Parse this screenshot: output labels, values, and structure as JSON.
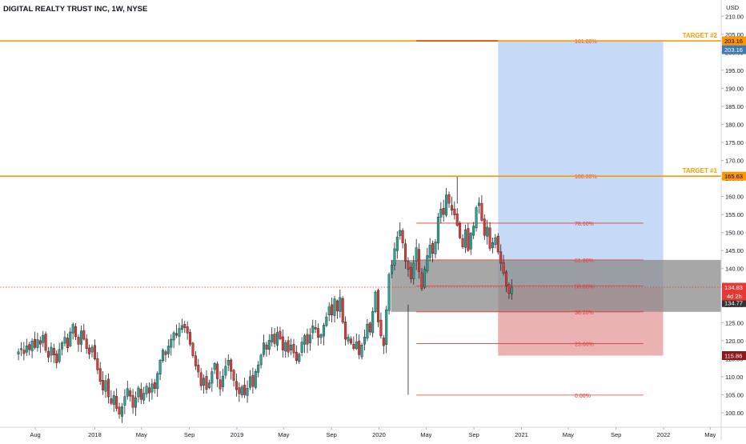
{
  "header": {
    "title": "DIGITAL REALTY TRUST INC, 1W, NYSE",
    "currency": "USD"
  },
  "chart_data": {
    "type": "candlestick",
    "title": "DIGITAL REALTY TRUST INC, 1W, NYSE",
    "ylabel": "USD",
    "ylim": [
      97,
      214
    ],
    "y_ticks": [
      100,
      105,
      110,
      115,
      120,
      125,
      130,
      135,
      140,
      145,
      150,
      155,
      160,
      165,
      170,
      175,
      180,
      185,
      190,
      195,
      200,
      205,
      210
    ],
    "x_ticks": [
      "Aug",
      "2018",
      "May",
      "Sep",
      "2019",
      "May",
      "Sep",
      "2020",
      "May",
      "Sep",
      "2021",
      "May",
      "Sep",
      "2022",
      "May"
    ],
    "x_tick_dates": [
      "2017-08-01",
      "2018-01-01",
      "2018-05-01",
      "2018-09-01",
      "2019-01-01",
      "2019-05-01",
      "2019-09-01",
      "2020-01-01",
      "2020-05-01",
      "2020-09-01",
      "2021-01-01",
      "2021-05-01",
      "2021-09-01",
      "2022-01-01",
      "2022-05-01"
    ],
    "colors": {
      "up": "#26a69a",
      "down": "#e53935",
      "target_line": "#ff9800",
      "fib_line": "#e53935",
      "profit_zone": "#bbd3f5",
      "loss_zone": "#e6a5a5",
      "gray_zone": "#8a8a8a"
    },
    "price_levels": [
      {
        "name": "TARGET #2",
        "value": 203.16,
        "label": "203.16"
      },
      {
        "name": "TARGET #1",
        "value": 165.63,
        "label": "165.63"
      }
    ],
    "fibonacci": [
      {
        "ratio": "161.80%",
        "value": 203.16
      },
      {
        "ratio": "100.00%",
        "value": 165.63
      },
      {
        "ratio": "78.60%",
        "value": 152.6
      },
      {
        "ratio": "61.80%",
        "value": 142.4
      },
      {
        "ratio": "50.00%",
        "value": 135.2
      },
      {
        "ratio": "38.20%",
        "value": 128.0
      },
      {
        "ratio": "23.60%",
        "value": 119.2
      },
      {
        "ratio": "0.00%",
        "value": 104.9
      }
    ],
    "position": {
      "entry": 134.77,
      "target": 203.16,
      "stop": 115.86,
      "start": "2020-11-02",
      "end": "2021-12-31"
    },
    "gray_zone": {
      "low": 128.0,
      "high": 142.4,
      "start": "2020-02-01"
    },
    "current_price": {
      "value": 134.83,
      "label": "134.83",
      "countdown": "4d 2h"
    },
    "axis_labels": [
      {
        "text": "203.16",
        "value": 203.16,
        "bg": "#ff9800",
        "fg": "#000000"
      },
      {
        "text": "203.16",
        "value": 203.16,
        "bg": "#3f79b6",
        "fg": "#ffffff",
        "below": true
      },
      {
        "text": "165.63",
        "value": 165.63,
        "bg": "#ff9800",
        "fg": "#000000"
      },
      {
        "text": "134.83",
        "value": 134.83,
        "bg": "#e53935",
        "fg": "#ffffff",
        "below": true
      },
      {
        "text": "134.77",
        "value": 134.77,
        "bg": "#333333",
        "fg": "#ffffff",
        "below": false,
        "offset": 2
      },
      {
        "text": "115.86",
        "value": 115.86,
        "bg": "#8b1a1a",
        "fg": "#ffffff"
      }
    ],
    "weekly_closes": [
      {
        "start": "2017-06-19",
        "closes": [
          116.9,
          117.8,
          116.4,
          118.6,
          117.5,
          119.9,
          118.1,
          120.3,
          119.0,
          121.5,
          117.3,
          115.4,
          118.2,
          116.0,
          113.8,
          117.6,
          119.4,
          120.9,
          118.0,
          122.4,
          124.5,
          121.1,
          119.0,
          122.7,
          120.4,
          117.8,
          116.3,
          118.2,
          114.9,
          111.9,
          108.7,
          106.3,
          108.9,
          104.4,
          102.6,
          104.8,
          101.2,
          99.6,
          101.7,
          104.5,
          106.7,
          104.6,
          101.5,
          104.2,
          106.9,
          103.7,
          105.4,
          107.4,
          105.5,
          108.0,
          106.7,
          110.9,
          114.6,
          117.4,
          116.1,
          118.5,
          120.4,
          122.2,
          121.5,
          123.4,
          124.2,
          123.6,
          122.1,
          119.0,
          115.8,
          113.0,
          111.3,
          107.5,
          109.6,
          106.5,
          108.3,
          111.4,
          113.7,
          109.4,
          106.6,
          110.2,
          112.9,
          114.6,
          111.5,
          109.0,
          106.4,
          105.3,
          107.2,
          105.0,
          106.8,
          110.0,
          107.3,
          111.5,
          113.3,
          116.0,
          119.4,
          117.6,
          120.1,
          121.7,
          119.2,
          122.3,
          120.5,
          117.4,
          119.5,
          116.8,
          118.8,
          116.6,
          114.5,
          116.3,
          119.6,
          121.4,
          119.0,
          121.6,
          124.1,
          123.2,
          120.9,
          121.7,
          124.3,
          126.6,
          129.4,
          127.1,
          131.6,
          128.2,
          132.0,
          125.1,
          120.4,
          121.0,
          119.3,
          117.8,
          119.7,
          116.1,
          118.8,
          121.0,
          124.6,
          122.4,
          128.1,
          133.5,
          125.2,
          121.3,
          118.6,
          128.6,
          138.4,
          141.0,
          145.5,
          148.8,
          150.6,
          147.1,
          142.0,
          139.8,
          137.2,
          141.5,
          145.8,
          139.1,
          134.4,
          139.8,
          143.6,
          146.5,
          144.2,
          147.4,
          154.3,
          156.5,
          155.0,
          160.4,
          158.1,
          156.2,
          154.9,
          152.0,
          148.5,
          146.0,
          150.8,
          145.0,
          149.8,
          151.8,
          156.9,
          158.2,
          153.4,
          149.2,
          151.5,
          145.6,
          147.2,
          148.6,
          144.6,
          141.5,
          138.7,
          135.2,
          133.1,
          134.8
        ]
      }
    ]
  }
}
